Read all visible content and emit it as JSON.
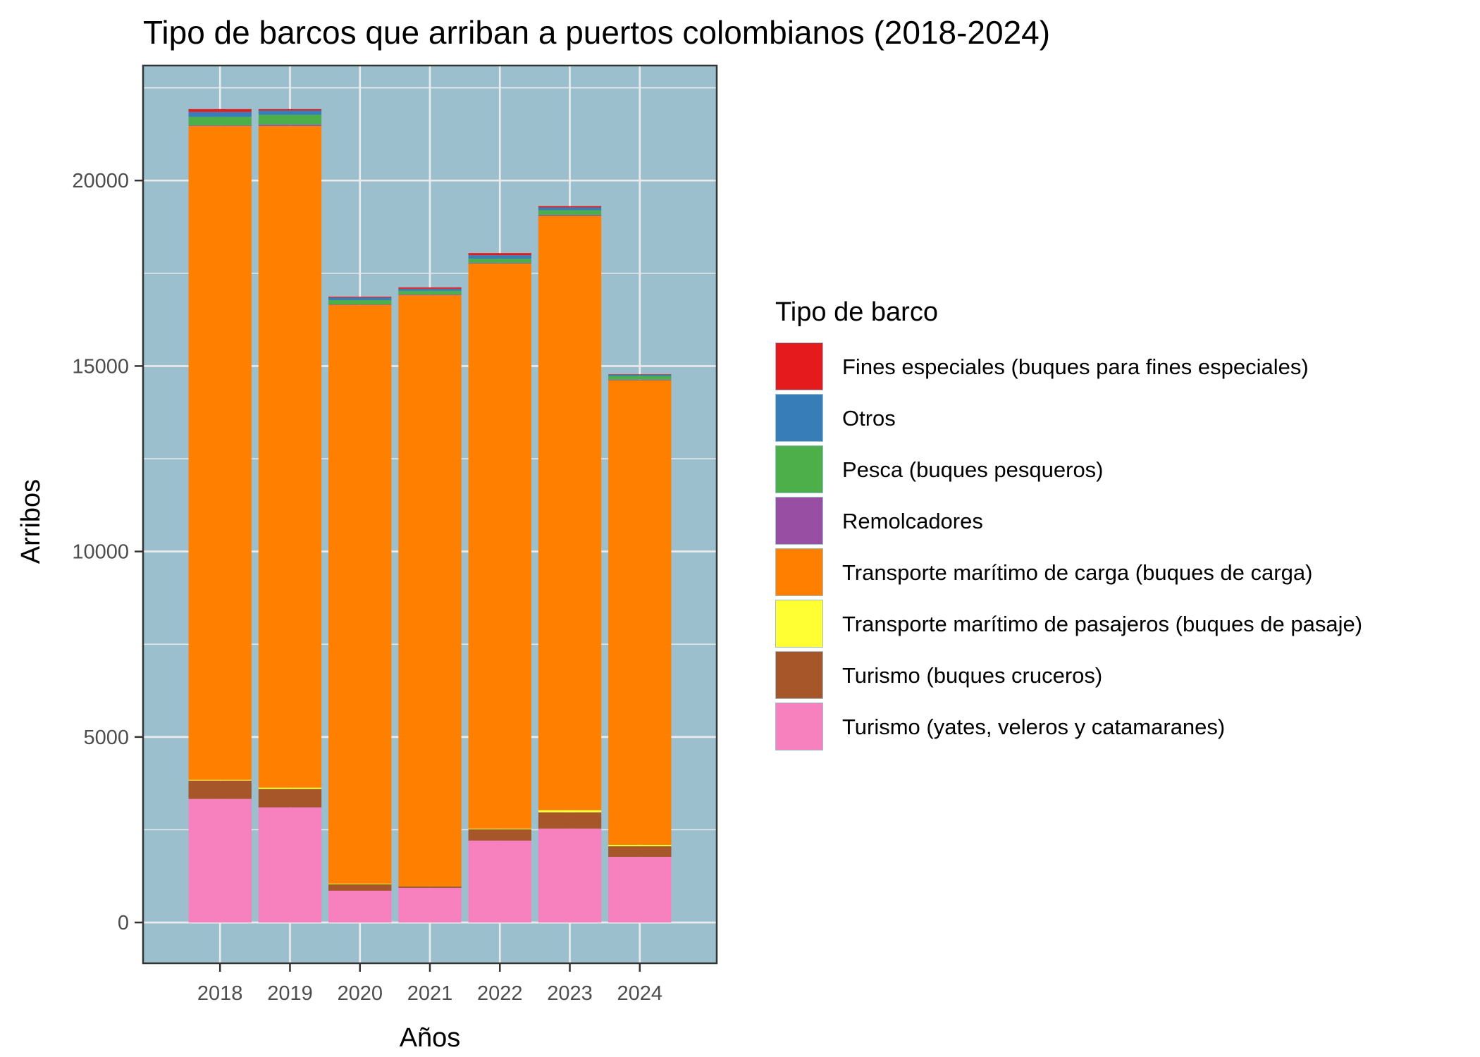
{
  "chart_data": {
    "type": "bar",
    "stacked": true,
    "title": "Tipo de barcos que arriban a puertos colombianos (2018-2024)",
    "xlabel": "Años",
    "ylabel": "Arribos",
    "categories": [
      "2018",
      "2019",
      "2020",
      "2021",
      "2022",
      "2023",
      "2024"
    ],
    "ylim": [
      -1100,
      23100
    ],
    "yticks": [
      0,
      5000,
      10000,
      15000,
      20000
    ],
    "ytick_labels": [
      "0",
      "5000",
      "10000",
      "15000",
      "20000"
    ],
    "grid": true,
    "panel_background": "#9bbfcd",
    "legend": {
      "title": "Tipo de barco",
      "position": "right"
    },
    "series": [
      {
        "name": "Fines especiales (buques para fines especiales)",
        "color": "#e41a1c",
        "values": [
          76,
          38,
          25,
          38,
          57,
          38,
          13
        ]
      },
      {
        "name": "Otros",
        "color": "#377eb8",
        "values": [
          133,
          114,
          70,
          57,
          95,
          76,
          32
        ]
      },
      {
        "name": "Pesca (buques pesqueros)",
        "color": "#4daf4a",
        "values": [
          227,
          265,
          114,
          95,
          114,
          126,
          101
        ]
      },
      {
        "name": "Remolcadores",
        "color": "#984ea3",
        "values": [
          19,
          38,
          13,
          19,
          19,
          25,
          19
        ]
      },
      {
        "name": "Transporte marítimo de carga (buques de carga)",
        "color": "#ff7f00",
        "values": [
          17625,
          17834,
          15601,
          15936,
          15227,
          16020,
          12519
        ]
      },
      {
        "name": "Transporte marítimo de pasajeros (buques de pasaje)",
        "color": "#ffff33",
        "values": [
          19,
          38,
          19,
          4,
          19,
          57,
          38
        ]
      },
      {
        "name": "Turismo (buques cruceros)",
        "color": "#a65628",
        "values": [
          495,
          495,
          171,
          38,
          305,
          438,
          286
        ]
      },
      {
        "name": "Turismo (yates, veleros y catamaranes)",
        "color": "#f781bf",
        "values": [
          3331,
          3103,
          857,
          933,
          2208,
          2532,
          1770
        ]
      }
    ]
  }
}
